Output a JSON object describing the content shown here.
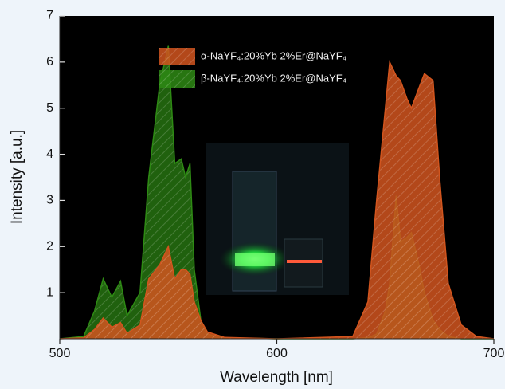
{
  "chart_data": {
    "type": "area",
    "x_label": "Wavelength [nm]",
    "y_label": "Intensity [a.u.]",
    "x": [
      500,
      511,
      516,
      520,
      524,
      528,
      531,
      537,
      541,
      546,
      550,
      553,
      556,
      558,
      560,
      562,
      565,
      568,
      576,
      600,
      635,
      642,
      646,
      650,
      652,
      655,
      657,
      660,
      662,
      666,
      668,
      672,
      675,
      679,
      685,
      692,
      700
    ],
    "series": [
      {
        "name": "α-NaYF₄:20%Yb 2%Er@NaYF₄",
        "color": "#d2551e",
        "values": [
          0,
          0.02,
          0.2,
          0.45,
          0.25,
          0.35,
          0.12,
          0.3,
          1.3,
          1.6,
          2.0,
          1.3,
          1.5,
          1.5,
          1.4,
          0.8,
          0.4,
          0.15,
          0.03,
          0,
          0.05,
          0.8,
          3.0,
          5.0,
          6.0,
          5.7,
          5.6,
          5.2,
          5.0,
          5.5,
          5.75,
          5.6,
          3.5,
          1.2,
          0.3,
          0.05,
          0
        ]
      },
      {
        "name": "β-NaYF₄:20%Yb 2%Er@NaYF₄",
        "color": "#2e8a14",
        "values": [
          0,
          0.05,
          0.6,
          1.3,
          0.9,
          1.25,
          0.5,
          1.0,
          3.5,
          5.5,
          6.35,
          3.8,
          3.9,
          3.5,
          3.8,
          1.5,
          0.4,
          0.1,
          0.02,
          0,
          0,
          0.02,
          0.1,
          0.6,
          1.2,
          3.1,
          2.1,
          2.2,
          2.3,
          1.5,
          1.0,
          0.4,
          0.2,
          0.05,
          0,
          0,
          0
        ]
      }
    ],
    "xlim": [
      500,
      700
    ],
    "xticks": [
      500,
      600,
      700
    ],
    "ylim": [
      0,
      7
    ],
    "yticks": [
      1,
      2,
      3,
      4,
      5,
      6,
      7
    ],
    "legend": "upper center"
  }
}
